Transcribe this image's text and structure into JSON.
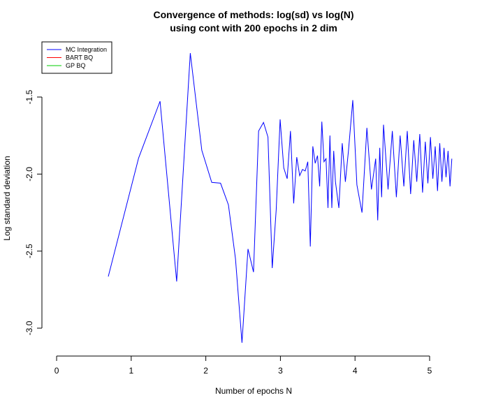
{
  "chart_data": {
    "type": "line",
    "title": "Convergence of methods: log(sd) vs log(N)",
    "subtitle": "using cont with 200 epochs in 2 dim",
    "x_label": "Number of epochs N",
    "y_label": "Log standard deviation",
    "xlim": [
      -0.197,
      5.309
    ],
    "ylim": [
      -3.181,
      -1.133
    ],
    "xticks": [
      0,
      1,
      2,
      3,
      4,
      5
    ],
    "yticks": [
      -1.5,
      {
        "value": -2,
        "label": "-2.0"
      },
      -2.5,
      {
        "value": -3,
        "label": "-3.0"
      }
    ],
    "x": [
      0.693,
      1.099,
      1.386,
      1.609,
      1.792,
      1.946,
      2.079,
      2.197,
      2.303,
      2.398,
      2.485,
      2.565,
      2.639,
      2.708,
      2.773,
      2.833,
      2.89,
      2.944,
      2.996,
      3.045,
      3.091,
      3.135,
      3.178,
      3.219,
      3.258,
      3.296,
      3.332,
      3.367,
      3.401,
      3.434,
      3.466,
      3.497,
      3.526,
      3.555,
      3.584,
      3.611,
      3.638,
      3.664,
      3.689,
      3.714,
      3.738,
      3.784,
      3.829,
      3.871,
      3.912,
      3.97,
      4.025,
      4.094,
      4.159,
      4.22,
      4.277,
      4.304,
      4.331,
      4.357,
      4.382,
      4.443,
      4.5,
      4.554,
      4.605,
      4.654,
      4.7,
      4.745,
      4.787,
      4.828,
      4.868,
      4.905,
      4.942,
      4.977,
      5.011,
      5.043,
      5.075,
      5.106,
      5.136,
      5.165,
      5.193,
      5.22,
      5.247,
      5.273,
      5.298
    ],
    "series": [
      {
        "name": "MC Integration",
        "color": "#0000ff",
        "values": [
          -2.665,
          -1.896,
          -1.527,
          -2.697,
          -1.215,
          -1.846,
          -2.054,
          -2.059,
          -2.2,
          -2.55,
          -3.095,
          -2.486,
          -2.636,
          -1.72,
          -1.665,
          -1.76,
          -2.61,
          -2.23,
          -1.645,
          -1.96,
          -2.03,
          -1.72,
          -2.19,
          -1.89,
          -2.01,
          -1.97,
          -1.98,
          -1.92,
          -2.47,
          -1.82,
          -1.93,
          -1.88,
          -2.08,
          -1.66,
          -1.92,
          -1.9,
          -2.22,
          -1.75,
          -2.22,
          -1.85,
          -2.05,
          -2.22,
          -1.8,
          -2.05,
          -1.85,
          -1.52,
          -2.07,
          -2.25,
          -1.7,
          -2.1,
          -1.9,
          -2.3,
          -1.83,
          -2.15,
          -1.68,
          -2.1,
          -1.72,
          -2.15,
          -1.75,
          -2.08,
          -1.72,
          -2.13,
          -1.78,
          -2.05,
          -1.74,
          -2.12,
          -1.79,
          -2.06,
          -1.76,
          -2.03,
          -1.82,
          -2.11,
          -1.8,
          -2.05,
          -1.83,
          -2.02,
          -1.85,
          -2.08,
          -1.9
        ]
      }
    ],
    "legend": {
      "position": "topleft",
      "entries": [
        {
          "name": "MC Integration",
          "color": "#0000ff"
        },
        {
          "name": "BART BQ",
          "color": "#ff0000"
        },
        {
          "name": "GP BQ",
          "color": "#00cd00"
        }
      ]
    }
  }
}
